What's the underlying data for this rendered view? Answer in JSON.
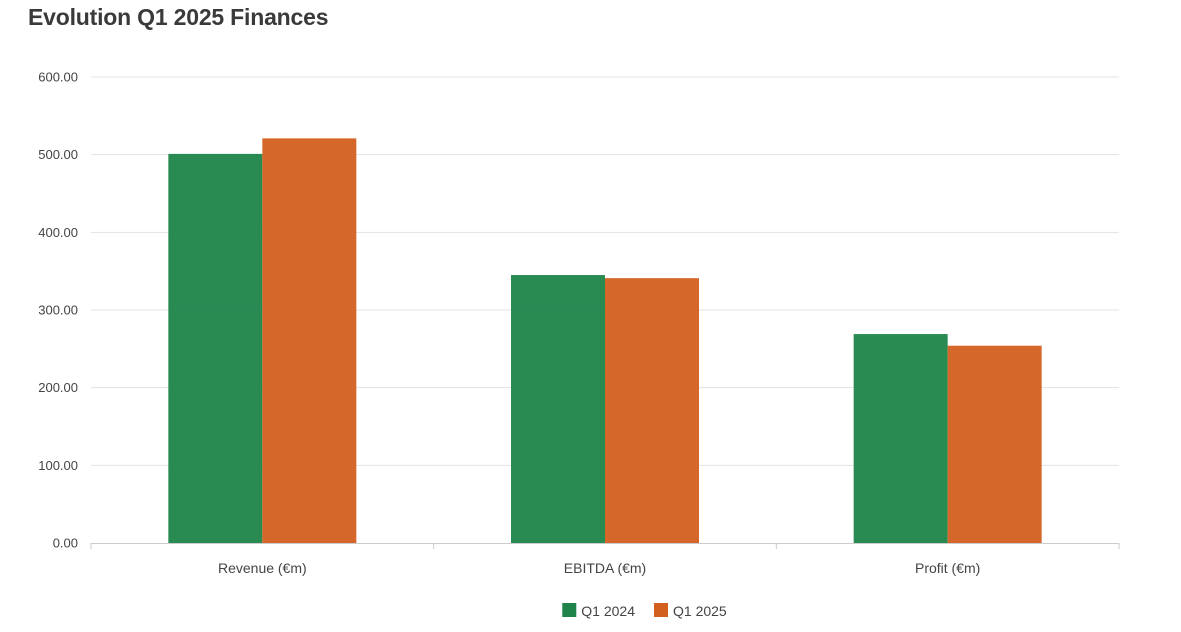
{
  "chart_data": {
    "type": "bar",
    "title": "Evolution Q1 2025 Finances",
    "categories": [
      "Revenue (€m)",
      "EBITDA (€m)",
      "Profit (€m)"
    ],
    "series": [
      {
        "name": "Q1 2024",
        "values": [
          501,
          345,
          269
        ],
        "color": "#1e8449"
      },
      {
        "name": "Q1 2025",
        "values": [
          521,
          341,
          254
        ],
        "color": "#d35f1f"
      }
    ],
    "ylim": [
      0,
      600
    ],
    "yticks": [
      "0.00",
      "100.00",
      "200.00",
      "300.00",
      "400.00",
      "500.00",
      "600.00"
    ],
    "grid": true,
    "legend_position": "bottom-center",
    "xlabel": "",
    "ylabel": ""
  }
}
